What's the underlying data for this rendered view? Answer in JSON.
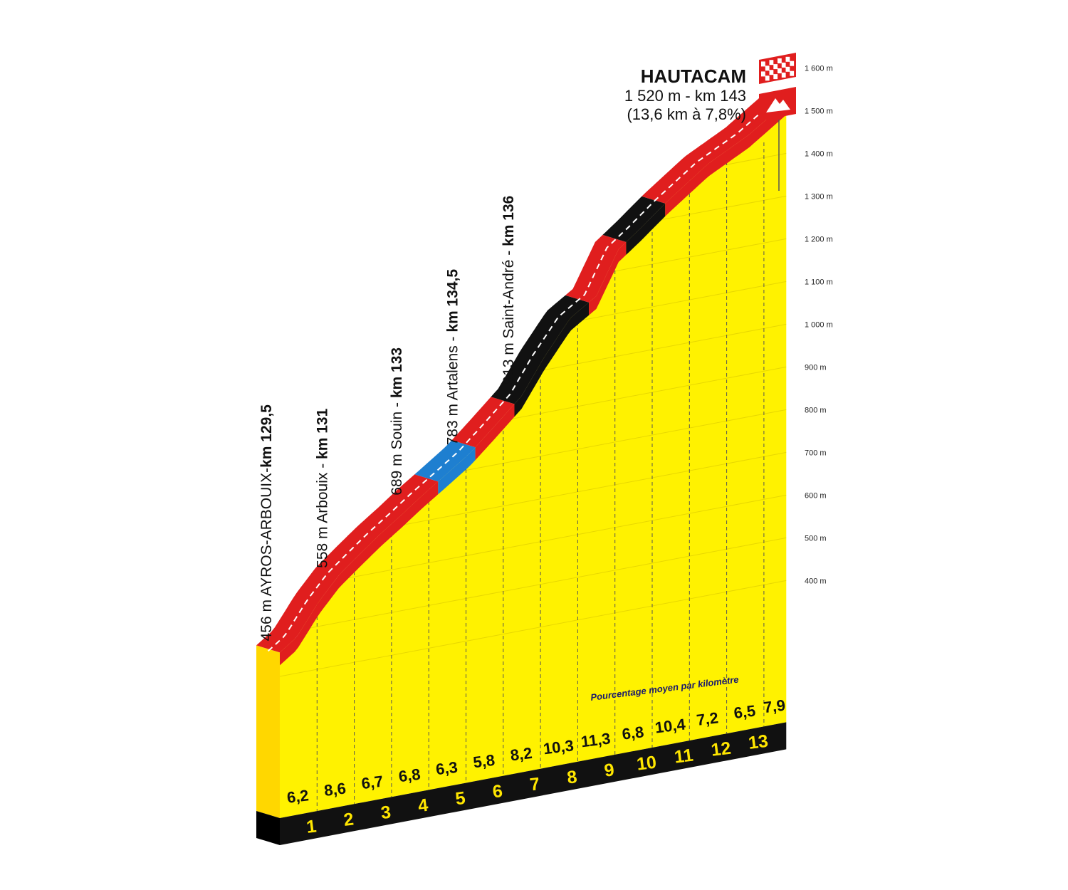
{
  "chart_data": {
    "type": "area",
    "summit": {
      "name": "HAUTACAM",
      "info_line": "1 520 m - km 143",
      "climb_line": "(13,6 km à 7,8%)"
    },
    "y_axis": {
      "ticks": [
        "400 m",
        "500 m",
        "600 m",
        "700 m",
        "800 m",
        "900 m",
        "1 000 m",
        "1 100 m",
        "1 200 m",
        "1 300 m",
        "1 400 m",
        "1 500 m",
        "1 600 m"
      ],
      "tick_values": [
        400,
        500,
        600,
        700,
        800,
        900,
        1000,
        1100,
        1200,
        1300,
        1400,
        1500,
        1600
      ]
    },
    "x_axis": {
      "km_labels": [
        "1",
        "2",
        "3",
        "4",
        "5",
        "6",
        "7",
        "8",
        "9",
        "10",
        "11",
        "12",
        "13"
      ],
      "range_km": [
        0,
        13.6
      ]
    },
    "profile": {
      "distance_km": [
        0,
        0.45,
        1.05,
        1.6,
        2.15,
        2.7,
        3.25,
        3.8,
        4.4,
        5.1,
        5.7,
        6.5,
        7.1,
        7.8,
        8.5,
        9.1,
        9.7,
        10.4,
        11.5,
        12.6,
        13.6
      ],
      "elevation_m": [
        456,
        484,
        558,
        612,
        651,
        689,
        723,
        759,
        795,
        838,
        885,
        950,
        1030,
        1110,
        1150,
        1250,
        1290,
        1340,
        1410,
        1460,
        1520
      ]
    },
    "segments": [
      {
        "from_km": 0,
        "to_km": 4.25,
        "color": "#e01e1e"
      },
      {
        "from_km": 4.25,
        "to_km": 5.25,
        "color": "#1e7fd0"
      },
      {
        "from_km": 5.25,
        "to_km": 6.3,
        "color": "#e01e1e"
      },
      {
        "from_km": 6.3,
        "to_km": 8.3,
        "color": "#111111"
      },
      {
        "from_km": 8.3,
        "to_km": 9.3,
        "color": "#e01e1e"
      },
      {
        "from_km": 9.3,
        "to_km": 10.35,
        "color": "#111111"
      },
      {
        "from_km": 10.35,
        "to_km": 13.6,
        "color": "#e01e1e"
      }
    ],
    "km_gradients": [
      "6,2",
      "8,6",
      "6,7",
      "6,8",
      "6,3",
      "5,8",
      "8,2",
      "10,3",
      "11,3",
      "6,8",
      "10,4",
      "7,2",
      "6,5",
      "7,9"
    ],
    "waypoints": [
      {
        "elevation_label": "456 m AYROS-ARBOUIX-",
        "km_label": "km 129,5",
        "km": 0
      },
      {
        "elevation_label": "558 m Arbouix - ",
        "km_label": "km 131",
        "km": 1.5
      },
      {
        "elevation_label": "689 m Souin - ",
        "km_label": "km 133",
        "km": 3.5
      },
      {
        "elevation_label": "783 m Artalens - ",
        "km_label": "km 134,5",
        "km": 5
      },
      {
        "elevation_label": "913 m Saint-André - ",
        "km_label": "km 136",
        "km": 6.5
      }
    ],
    "note": "Pourcentage moyen par kilomètre",
    "colors": {
      "fill": "#fff200",
      "side": "#ffd700",
      "base": "#111111",
      "flag_red": "#e01e1e"
    }
  }
}
